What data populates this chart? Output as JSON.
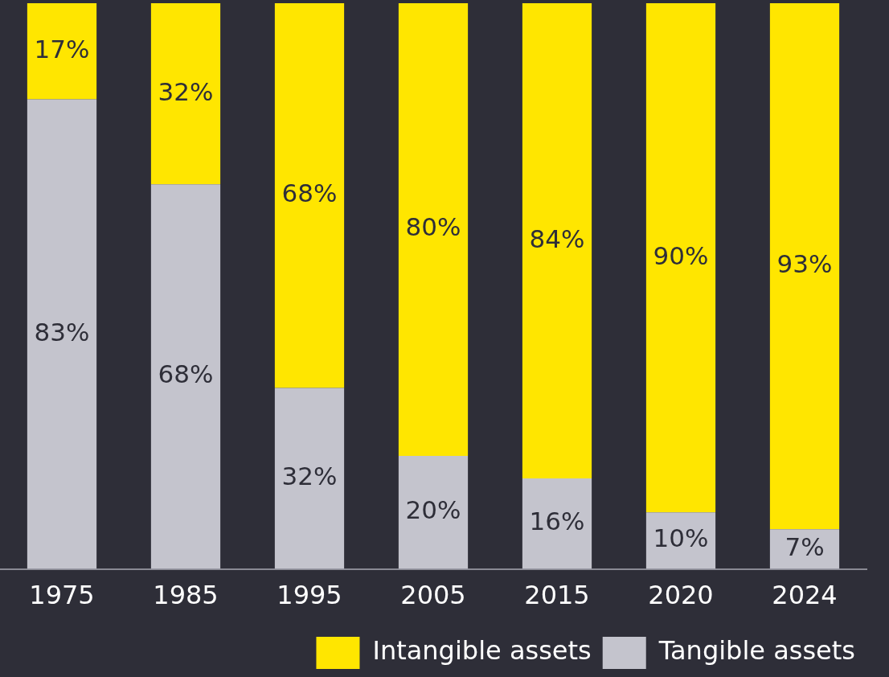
{
  "chart_data": {
    "type": "bar",
    "stacked": true,
    "categories": [
      "1975",
      "1985",
      "1995",
      "2005",
      "2015",
      "2020",
      "2024"
    ],
    "series": [
      {
        "name": "Tangible assets",
        "color": "#c4c4cd",
        "values": [
          83,
          68,
          32,
          20,
          16,
          10,
          7
        ],
        "value_labels": [
          "83%",
          "68%",
          "32%",
          "20%",
          "16%",
          "10%",
          "7%"
        ]
      },
      {
        "name": "Intangible assets",
        "color": "#ffe600",
        "values": [
          17,
          32,
          68,
          80,
          84,
          90,
          93
        ],
        "value_labels": [
          "17%",
          "32%",
          "68%",
          "80%",
          "84%",
          "90%",
          "93%"
        ]
      }
    ],
    "legend": "bottom right",
    "grid": false,
    "tick_labels": "x"
  }
}
